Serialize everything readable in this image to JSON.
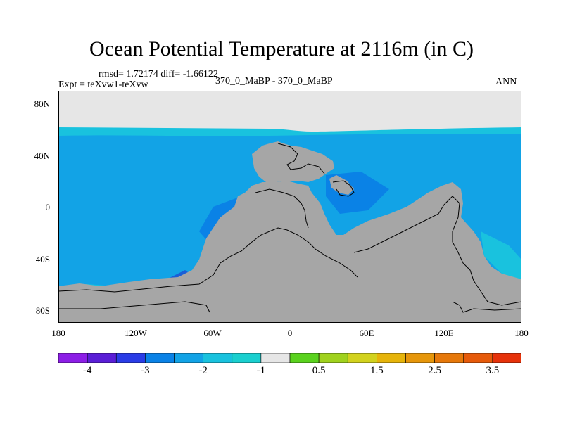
{
  "title": "Ocean Potential Temperature at 2116m (in C)",
  "stats": "rmsd= 1.72174 diff= -1.66122",
  "experiment": "Expt = teXvw1-teXvw",
  "period": "370_0_MaBP - 370_0_MaBP",
  "season": "ANN",
  "map": {
    "lat_ticks": [
      "80N",
      "40N",
      "0",
      "40S",
      "80S"
    ],
    "lon_ticks": [
      "180",
      "120W",
      "60W",
      "0",
      "60E",
      "120E",
      "180"
    ],
    "colors": {
      "land": "#a6a6a6",
      "polar_missing": "#e6e6e6",
      "ocean_cyan": "#19c2de",
      "ocean_mid": "#12a3e6",
      "ocean_deep": "#0a82e6",
      "ocean_dark": "#1a5fd6",
      "coastline": "#000000"
    }
  },
  "colorbar": {
    "colors": [
      "#8c1ee6",
      "#5a1ed6",
      "#2a3ce6",
      "#0a82e6",
      "#12a3e6",
      "#19c2de",
      "#1acfcf",
      "#e6e6e6",
      "#5ad21e",
      "#a0d21e",
      "#d2d21e",
      "#e6b40a",
      "#e6960a",
      "#e6780a",
      "#e65a0a",
      "#e6320a"
    ],
    "labels": [
      "-4",
      "-3",
      "-2",
      "-1",
      "0.5",
      "1.5",
      "2.5",
      "3.5"
    ]
  }
}
